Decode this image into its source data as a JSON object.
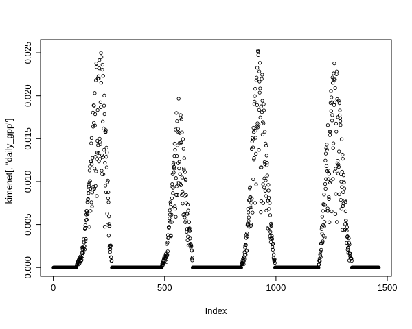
{
  "figure": {
    "background_color": "#ffffff",
    "frame_color": "#000000",
    "text_color": "#000000"
  },
  "chart_data": {
    "type": "scatter",
    "title": "",
    "xlabel": "Index",
    "ylabel": "kimenet[, \"daily_gpp\"]",
    "x_ticks": [
      0,
      500,
      1000,
      1500
    ],
    "x_tick_labels": [
      "0",
      "500",
      "1000",
      "1500"
    ],
    "y_ticks": [
      0,
      0.005,
      0.01,
      0.015,
      0.02,
      0.025
    ],
    "y_tick_labels": [
      "0.000",
      "0.005",
      "0.010",
      "0.015",
      "0.020",
      "0.025"
    ],
    "xlim": [
      -57.4,
      1518.4
    ],
    "ylim": [
      -0.00102,
      0.02652
    ],
    "grid": false,
    "legend": null,
    "marker": {
      "shape": "open-circle",
      "radius_px": 2.2,
      "color": "#000000",
      "stroke_width": 0.9
    },
    "n_points": 1462,
    "zero_value": 0,
    "zero_runs": [
      [
        1,
        104
      ],
      [
        263,
        487
      ],
      [
        626,
        844
      ],
      [
        996,
        1191
      ],
      [
        1341,
        1462
      ]
    ],
    "peaks": [
      {
        "index": 210,
        "value": 0.0255
      },
      {
        "index": 558,
        "value": 0.0202
      },
      {
        "index": 918,
        "value": 0.0253
      },
      {
        "index": 1262,
        "value": 0.0242
      }
    ],
    "seasonal_envelopes": [
      {
        "season": 1,
        "control_points": [
          [
            105,
            0.0004
          ],
          [
            125,
            0.0015
          ],
          [
            140,
            0.004
          ],
          [
            160,
            0.01
          ],
          [
            180,
            0.019
          ],
          [
            195,
            0.0245
          ],
          [
            210,
            0.0255
          ],
          [
            225,
            0.024
          ],
          [
            238,
            0.016
          ],
          [
            248,
            0.008
          ],
          [
            256,
            0.0035
          ],
          [
            262,
            0.0008
          ]
        ]
      },
      {
        "season": 2,
        "control_points": [
          [
            488,
            0.0004
          ],
          [
            503,
            0.0015
          ],
          [
            515,
            0.004
          ],
          [
            530,
            0.009
          ],
          [
            545,
            0.015
          ],
          [
            558,
            0.0202
          ],
          [
            572,
            0.019
          ],
          [
            588,
            0.013
          ],
          [
            602,
            0.008
          ],
          [
            614,
            0.004
          ],
          [
            625,
            0.0012
          ]
        ]
      },
      {
        "season": 3,
        "control_points": [
          [
            845,
            0.0004
          ],
          [
            858,
            0.0015
          ],
          [
            870,
            0.005
          ],
          [
            885,
            0.011
          ],
          [
            900,
            0.018
          ],
          [
            918,
            0.0253
          ],
          [
            935,
            0.024
          ],
          [
            950,
            0.017
          ],
          [
            965,
            0.01
          ],
          [
            980,
            0.005
          ],
          [
            995,
            0.0008
          ]
        ]
      },
      {
        "season": 4,
        "control_points": [
          [
            1192,
            0.0004
          ],
          [
            1200,
            0.002
          ],
          [
            1210,
            0.007
          ],
          [
            1222,
            0.013
          ],
          [
            1240,
            0.019
          ],
          [
            1262,
            0.0242
          ],
          [
            1280,
            0.022
          ],
          [
            1295,
            0.015
          ],
          [
            1308,
            0.009
          ],
          [
            1320,
            0.005
          ],
          [
            1331,
            0.0025
          ],
          [
            1340,
            0.0008
          ]
        ]
      }
    ],
    "scatter_noise": {
      "seed": 20,
      "min_fraction": 0.4,
      "skew": 1.6,
      "dropout_probability": 0.07,
      "dropout_factor": 0.5
    }
  }
}
